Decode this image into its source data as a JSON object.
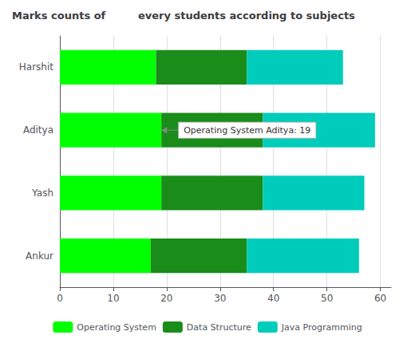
{
  "chart_data": {
    "type": "bar",
    "orientation": "horizontal",
    "stacked": true,
    "title": "Marks counts of         every students according to subjects",
    "categories": [
      "Harshit",
      "Aditya",
      "Yash",
      "Ankur"
    ],
    "series": [
      {
        "name": "Operating System",
        "color": "#00ff00",
        "values": [
          18,
          19,
          19,
          17
        ]
      },
      {
        "name": "Data Structure",
        "color": "#1a8c1a",
        "values": [
          17,
          19,
          19,
          18
        ]
      },
      {
        "name": "Java Programming",
        "color": "#00ccbb",
        "values": [
          18,
          21,
          19,
          21
        ]
      }
    ],
    "xlim": [
      0,
      62
    ],
    "xticks": [
      0,
      10,
      20,
      30,
      40,
      50,
      60
    ],
    "grid": true,
    "legend": "bottom",
    "annotations": [
      {
        "text": "Operating System Aditya: 19",
        "x": 19,
        "y": "Aditya"
      }
    ]
  }
}
